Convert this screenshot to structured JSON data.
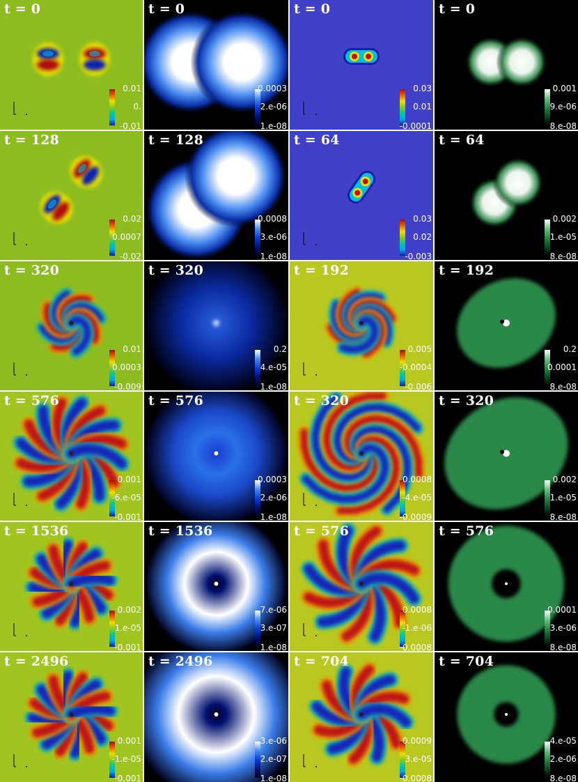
{
  "panels": [
    {
      "time": "t = 0",
      "cmap": "jet",
      "ticks": [
        "0.01",
        "0.",
        "-0.01"
      ],
      "field": {
        "type": "dipole-pair",
        "angle": 0,
        "amp": 1.0
      }
    },
    {
      "time": "t = 0",
      "cmap": "blue",
      "ticks": [
        "0.0003",
        "2.e-06",
        "1.e-08"
      ],
      "field": {
        "type": "blob-pair",
        "angle": 0
      }
    },
    {
      "time": "t = 0",
      "cmap": "jet-dark",
      "ticks": [
        "0.03",
        "0.01",
        "-0.0001"
      ],
      "field": {
        "type": "small-pair",
        "angle": 0
      }
    },
    {
      "time": "t = 0",
      "cmap": "green",
      "ticks": [
        "0.001",
        "9.e-06",
        "8.e-08"
      ],
      "field": {
        "type": "blob-pair-small",
        "angle": 0
      }
    },
    {
      "time": "t = 128",
      "cmap": "jet",
      "ticks": [
        "0.02",
        "0.0007",
        "-0.02"
      ],
      "field": {
        "type": "dipole-pair",
        "angle": -50
      }
    },
    {
      "time": "t = 128",
      "cmap": "blue",
      "ticks": [
        "0.0008",
        "3.e-06",
        "1.e-08"
      ],
      "field": {
        "type": "blob-pair",
        "angle": -40
      }
    },
    {
      "time": "t = 64",
      "cmap": "jet-dark",
      "ticks": [
        "0.03",
        "0.02",
        "-0.003"
      ],
      "field": {
        "type": "small-pair",
        "angle": -55
      }
    },
    {
      "time": "t = 64",
      "cmap": "green",
      "ticks": [
        "0.002",
        "1.e-05",
        "8.e-08"
      ],
      "field": {
        "type": "blob-pair-small",
        "angle": -40
      }
    },
    {
      "time": "t = 320",
      "cmap": "jet",
      "ticks": [
        "0.01",
        "0.0003",
        "-0.009"
      ],
      "field": {
        "type": "spiral",
        "arms": 4,
        "twist": 2.2,
        "reach": 0.45
      }
    },
    {
      "time": "t = 320",
      "cmap": "blue",
      "ticks": [
        "0.2",
        "4.e-05",
        "1.e-08"
      ],
      "field": {
        "type": "glow-point"
      }
    },
    {
      "time": "t = 192",
      "cmap": "jet",
      "ticks": [
        "0.005",
        "-0.0004",
        "-0.006"
      ],
      "field": {
        "type": "spiral",
        "arms": 4,
        "twist": 3.0,
        "reach": 0.48
      }
    },
    {
      "time": "t = 192",
      "cmap": "green",
      "ticks": [
        "0.2",
        "0.0001",
        "8.e-08"
      ],
      "field": {
        "type": "green-disk",
        "size": 0.4
      }
    },
    {
      "time": "t = 576",
      "cmap": "jet",
      "ticks": [
        "0.001",
        "-6.e-05",
        "-0.001"
      ],
      "field": {
        "type": "flower",
        "petals": 8,
        "twist": 0.6,
        "reach": 0.8
      }
    },
    {
      "time": "t = 576",
      "cmap": "blue",
      "ticks": [
        "0.0003",
        "2.e-06",
        "1.e-08"
      ],
      "field": {
        "type": "glow-disk",
        "size": 0.45
      }
    },
    {
      "time": "t = 320",
      "cmap": "jet",
      "ticks": [
        "0.0008",
        "-4.e-05",
        "-0.0009"
      ],
      "field": {
        "type": "spiral",
        "arms": 4,
        "twist": 3.5,
        "reach": 0.95
      }
    },
    {
      "time": "t = 320",
      "cmap": "green",
      "ticks": [
        "0.002",
        "1.e-05",
        "8.e-08"
      ],
      "field": {
        "type": "green-disk",
        "size": 0.5
      }
    },
    {
      "time": "t = 1536",
      "cmap": "jet",
      "ticks": [
        "0.002",
        "1.e-05",
        "-0.001"
      ],
      "field": {
        "type": "flower",
        "petals": 8,
        "twist": 0.3,
        "reach": 0.6
      }
    },
    {
      "time": "t = 1536",
      "cmap": "blue",
      "ticks": [
        "7.e-06",
        "3.e-07",
        "1.e-08"
      ],
      "field": {
        "type": "ring",
        "size": 0.42
      }
    },
    {
      "time": "t = 576",
      "cmap": "jet",
      "ticks": [
        "0.0008",
        "-1.e-06",
        "-0.0008"
      ],
      "field": {
        "type": "flower",
        "petals": 6,
        "twist": 0.8,
        "reach": 0.85
      }
    },
    {
      "time": "t = 576",
      "cmap": "green",
      "ticks": [
        "0.0001",
        "3.e-06",
        "8.e-08"
      ],
      "field": {
        "type": "green-ring",
        "size": 0.45
      }
    },
    {
      "time": "t = 2496",
      "cmap": "jet",
      "ticks": [
        "0.001",
        "-1.e-05",
        "-0.001"
      ],
      "field": {
        "type": "flower",
        "petals": 8,
        "twist": 0.3,
        "reach": 0.6
      }
    },
    {
      "time": "t = 2496",
      "cmap": "blue",
      "ticks": [
        "3.e-06",
        "2.e-07",
        "1.e-08"
      ],
      "field": {
        "type": "ring",
        "size": 0.5
      }
    },
    {
      "time": "t = 704",
      "cmap": "jet",
      "ticks": [
        "0.0009",
        "3.e-05",
        "-0.0008"
      ],
      "field": {
        "type": "flower",
        "petals": 6,
        "twist": 0.7,
        "reach": 0.7
      }
    },
    {
      "time": "t = 704",
      "cmap": "green",
      "ticks": [
        "4.e-05",
        "2.e-06",
        "8.e-08"
      ],
      "field": {
        "type": "green-ring",
        "size": 0.38
      }
    }
  ],
  "colormaps": {
    "jet": [
      "#1a1aa8",
      "#00a8e8",
      "#00c8a0",
      "#8cc81e",
      "#e8e000",
      "#e86000",
      "#a01010"
    ],
    "jet-dark": [
      "#1a1aa8",
      "#00a8e8",
      "#00c8a0",
      "#8cc81e",
      "#e8e000",
      "#e86000",
      "#a01010"
    ],
    "blue": [
      "#000018",
      "#001078",
      "#0a40d8",
      "#4a8cf0",
      "#ffffff"
    ],
    "green": [
      "#000000",
      "#0e4a22",
      "#2a8848",
      "#6cc086",
      "#ffffff"
    ]
  }
}
